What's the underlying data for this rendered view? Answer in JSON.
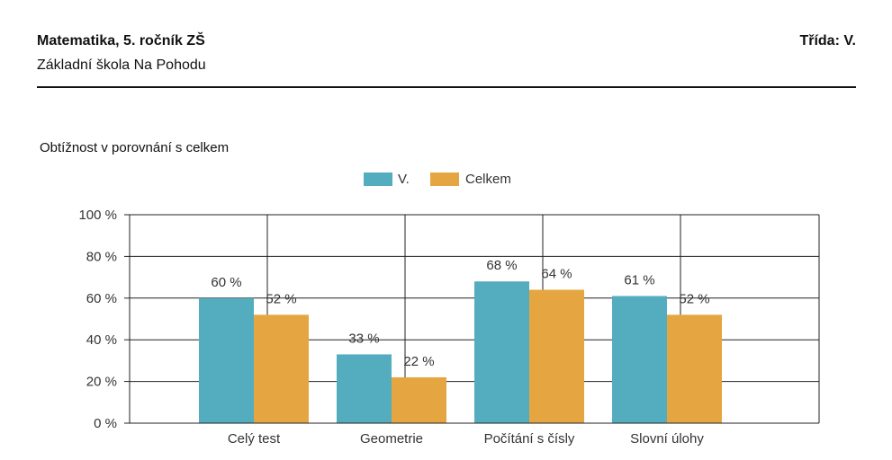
{
  "header": {
    "title": "Matematika, 5. ročník ZŠ",
    "school": "Základní škola Na Pohodu",
    "class_label": "Třída: V."
  },
  "chart_data": {
    "type": "bar",
    "title": "Obtížnost v porovnání s celkem",
    "xlabel": "",
    "ylabel": "",
    "ylim": [
      0,
      100
    ],
    "yticks": [
      "0 %",
      "20 %",
      "40 %",
      "60 %",
      "80 %",
      "100 %"
    ],
    "y_tick_values": [
      0,
      20,
      40,
      60,
      80,
      100
    ],
    "grid": true,
    "legend_position": "top-center",
    "categories": [
      "Celý test",
      "Geometrie",
      "Počítání s čísly",
      "Slovní úlohy"
    ],
    "series": [
      {
        "name": "V.",
        "color": "#54acbf",
        "values": [
          60,
          33,
          68,
          61
        ],
        "labels": [
          "60 %",
          "33 %",
          "68 %",
          "61 %"
        ]
      },
      {
        "name": "Celkem",
        "color": "#e5a540",
        "values": [
          52,
          22,
          64,
          52
        ],
        "labels": [
          "52 %",
          "22 %",
          "64 %",
          "52 %"
        ]
      }
    ]
  }
}
